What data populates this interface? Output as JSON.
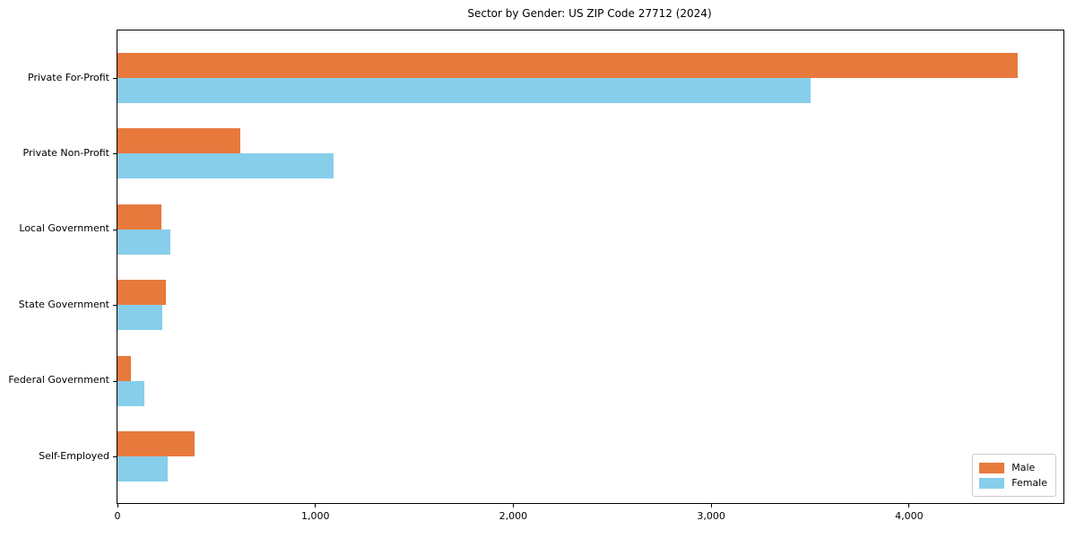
{
  "title": "Sector by Gender: US ZIP Code 27712 (2024)",
  "chart_data": {
    "type": "bar",
    "orientation": "horizontal",
    "title": "Sector by Gender: US ZIP Code 27712 (2024)",
    "categories": [
      "Private For-Profit",
      "Private Non-Profit",
      "Local Government",
      "State Government",
      "Federal Government",
      "Self-Employed"
    ],
    "series": [
      {
        "name": "Male",
        "color": "#e8793c",
        "values": [
          4550,
          620,
          220,
          245,
          70,
          390
        ]
      },
      {
        "name": "Female",
        "color": "#87ceeb",
        "values": [
          3500,
          1090,
          265,
          225,
          135,
          255
        ]
      }
    ],
    "xlabel": "",
    "ylabel": "",
    "xlim": [
      0,
      4780
    ],
    "x_ticks": [
      0,
      1000,
      2000,
      3000,
      4000
    ],
    "x_tick_labels": [
      "0",
      "1,000",
      "2,000",
      "3,000",
      "4,000"
    ],
    "grid": false,
    "legend": {
      "position": "lower right"
    },
    "colors": {
      "spine": "#000000",
      "text": "#000000",
      "legend_border": "#cccccc"
    }
  }
}
